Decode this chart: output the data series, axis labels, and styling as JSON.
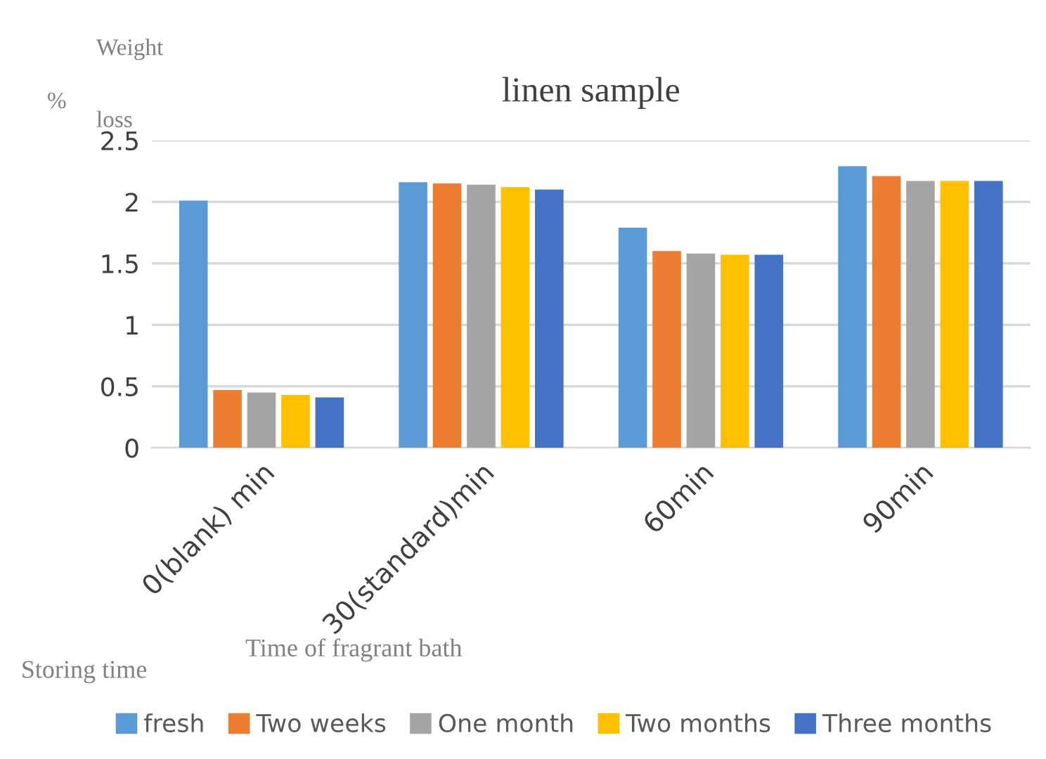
{
  "chart_data": {
    "type": "bar",
    "title": "linen sample",
    "xlabel": "Time of fragrant bath",
    "legend_title": "Storing time",
    "annotations": [
      "Weight",
      "%",
      "loss"
    ],
    "categories": [
      "0(blank) min",
      "30(standard)min",
      "60min",
      "90min"
    ],
    "series": [
      {
        "name": "fresh",
        "color": "#5b9bd5",
        "values": [
          2.01,
          2.16,
          1.79,
          2.29
        ]
      },
      {
        "name": "Two weeks",
        "color": "#ed7d31",
        "values": [
          0.47,
          2.15,
          1.6,
          2.21
        ]
      },
      {
        "name": "One month",
        "color": "#a5a5a5",
        "values": [
          0.45,
          2.14,
          1.58,
          2.17
        ]
      },
      {
        "name": "Two months",
        "color": "#ffc000",
        "values": [
          0.43,
          2.12,
          1.57,
          2.17
        ]
      },
      {
        "name": "Three months",
        "color": "#4472c4",
        "values": [
          0.41,
          2.1,
          1.57,
          2.17
        ]
      }
    ],
    "ylim": [
      0,
      2.5
    ],
    "yticks": [
      0,
      {
        "value": 0.5,
        "label": "0.5"
      },
      1,
      {
        "value": 1.5,
        "label": "1.5"
      },
      2,
      {
        "value": 2.5,
        "label": "2.5"
      }
    ],
    "grid": "y",
    "legend": "bottom"
  }
}
